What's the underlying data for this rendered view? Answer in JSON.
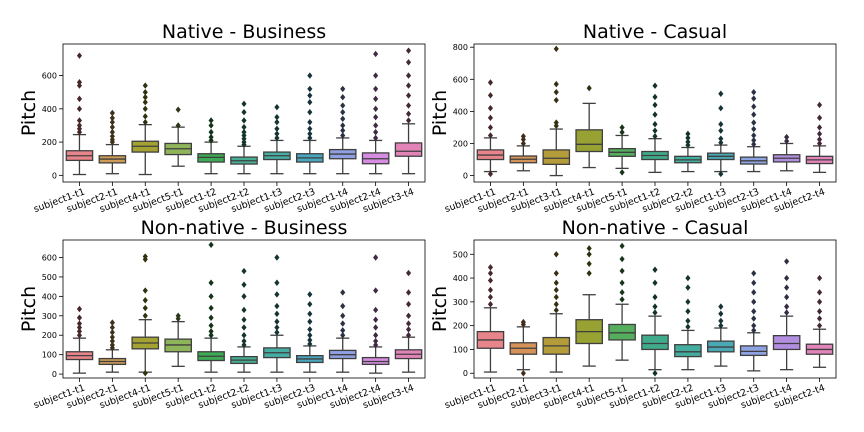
{
  "chart_data": [
    {
      "type": "box",
      "title": "Native - Business",
      "xlabel": "",
      "ylabel": "Pitch",
      "ylim": [
        -40,
        790
      ],
      "yticks": [
        0,
        200,
        400,
        600
      ],
      "grid": false,
      "categories": [
        "subject1-t1",
        "subject2-t1",
        "subject4-t1",
        "subject5-t1",
        "subject1-t2",
        "subject2-t2",
        "subject1-t3",
        "subject2-t3",
        "subject1-t4",
        "subject2-t4",
        "subject3-t4"
      ],
      "colors": [
        "#e8858a",
        "#cf9b55",
        "#a4a232",
        "#8eb55a",
        "#3daa55",
        "#47ae93",
        "#46ada3",
        "#4aa7c0",
        "#8f9fe0",
        "#d68ce0",
        "#e384b9"
      ],
      "boxes": [
        {
          "whisker_low": 5,
          "q1": 90,
          "median": 118,
          "q3": 148,
          "whisker_high": 245,
          "outliers": [
            260,
            280,
            300,
            330,
            400,
            460,
            540,
            560,
            720
          ]
        },
        {
          "whisker_low": 10,
          "q1": 75,
          "median": 98,
          "q3": 118,
          "whisker_high": 185,
          "outliers": [
            200,
            215,
            235,
            260,
            290,
            320,
            345,
            375
          ]
        },
        {
          "whisker_low": 5,
          "q1": 140,
          "median": 175,
          "q3": 205,
          "whisker_high": 305,
          "outliers": [
            320,
            355,
            400,
            440,
            470,
            500,
            540
          ]
        },
        {
          "whisker_low": 55,
          "q1": 125,
          "median": 160,
          "q3": 192,
          "whisker_high": 290,
          "outliers": [
            300,
            395
          ]
        },
        {
          "whisker_low": 10,
          "q1": 80,
          "median": 108,
          "q3": 130,
          "whisker_high": 200,
          "outliers": [
            210,
            230,
            260,
            300,
            330
          ]
        },
        {
          "whisker_low": 10,
          "q1": 68,
          "median": 88,
          "q3": 110,
          "whisker_high": 175,
          "outliers": [
            185,
            200,
            220,
            240,
            260,
            290,
            330,
            380,
            430
          ]
        },
        {
          "whisker_low": 10,
          "q1": 95,
          "median": 118,
          "q3": 140,
          "whisker_high": 210,
          "outliers": [
            225,
            250,
            280,
            320,
            350,
            410
          ]
        },
        {
          "whisker_low": 10,
          "q1": 80,
          "median": 105,
          "q3": 130,
          "whisker_high": 210,
          "outliers": [
            225,
            250,
            280,
            320,
            380,
            440,
            480,
            520,
            600
          ]
        },
        {
          "whisker_low": 10,
          "q1": 100,
          "median": 128,
          "q3": 155,
          "whisker_high": 225,
          "outliers": [
            240,
            270,
            300,
            340,
            380,
            420,
            470,
            520
          ]
        },
        {
          "whisker_low": 10,
          "q1": 70,
          "median": 100,
          "q3": 135,
          "whisker_high": 210,
          "outliers": [
            225,
            260,
            300,
            350,
            400,
            460,
            520,
            600,
            730
          ]
        },
        {
          "whisker_low": 10,
          "q1": 115,
          "median": 145,
          "q3": 195,
          "whisker_high": 310,
          "outliers": [
            330,
            370,
            420,
            480,
            540,
            600,
            680,
            750
          ]
        }
      ]
    },
    {
      "type": "box",
      "title": "Native - Casual",
      "xlabel": "",
      "ylabel": "Pitch",
      "ylim": [
        -40,
        820
      ],
      "yticks": [
        0,
        200,
        400,
        600,
        800
      ],
      "grid": false,
      "categories": [
        "subject1-t1",
        "subject2-t1",
        "subject3-t1",
        "subject4-t1",
        "subject5-t1",
        "subject1-t2",
        "subject2-t2",
        "subject1-t3",
        "subject2-t3",
        "subject1-t4",
        "subject2-t4"
      ],
      "colors": [
        "#e8858a",
        "#d5935a",
        "#b49c3a",
        "#98a232",
        "#55ae5e",
        "#40ab8b",
        "#45ad9f",
        "#4aa9b5",
        "#8ea3e2",
        "#b28ee0",
        "#e385bb"
      ],
      "boxes": [
        {
          "whisker_low": 25,
          "q1": 100,
          "median": 128,
          "q3": 160,
          "whisker_high": 235,
          "outliers": [
            10,
            250,
            300,
            360,
            420,
            500,
            580
          ]
        },
        {
          "whisker_low": 30,
          "q1": 80,
          "median": 102,
          "q3": 122,
          "whisker_high": 185,
          "outliers": [
            200,
            225,
            245
          ]
        },
        {
          "whisker_low": 0,
          "q1": 70,
          "median": 108,
          "q3": 160,
          "whisker_high": 290,
          "outliers": [
            310,
            330,
            470,
            520,
            570,
            790
          ]
        },
        {
          "whisker_low": 50,
          "q1": 150,
          "median": 195,
          "q3": 285,
          "whisker_high": 450,
          "outliers": [
            545
          ]
        },
        {
          "whisker_low": 45,
          "q1": 120,
          "median": 145,
          "q3": 168,
          "whisker_high": 250,
          "outliers": [
            20,
            270,
            300
          ]
        },
        {
          "whisker_low": 20,
          "q1": 100,
          "median": 125,
          "q3": 150,
          "whisker_high": 230,
          "outliers": [
            245,
            280,
            320,
            380,
            440,
            490,
            560
          ]
        },
        {
          "whisker_low": 25,
          "q1": 80,
          "median": 98,
          "q3": 120,
          "whisker_high": 175,
          "outliers": [
            190,
            210,
            235,
            260
          ]
        },
        {
          "whisker_low": 25,
          "q1": 100,
          "median": 120,
          "q3": 140,
          "whisker_high": 190,
          "outliers": [
            10,
            205,
            230,
            280,
            320,
            420,
            510
          ]
        },
        {
          "whisker_low": 25,
          "q1": 72,
          "median": 92,
          "q3": 115,
          "whisker_high": 180,
          "outliers": [
            195,
            220,
            250,
            290,
            330,
            380,
            430,
            480,
            520
          ]
        },
        {
          "whisker_low": 30,
          "q1": 85,
          "median": 108,
          "q3": 130,
          "whisker_high": 200,
          "outliers": [
            215,
            240
          ]
        },
        {
          "whisker_low": 20,
          "q1": 75,
          "median": 98,
          "q3": 120,
          "whisker_high": 185,
          "outliers": [
            200,
            225,
            260,
            300,
            360,
            440
          ]
        }
      ]
    },
    {
      "type": "box",
      "title": "Non-native - Business",
      "xlabel": "",
      "ylabel": "Pitch",
      "ylim": [
        -20,
        690
      ],
      "yticks": [
        0,
        100,
        200,
        300,
        400,
        500,
        600
      ],
      "grid": false,
      "categories": [
        "subject1-t1",
        "subject2-t1",
        "subject4-t1",
        "subject5-t1",
        "subject1-t2",
        "subject2-t2",
        "subject1-t3",
        "subject2-t3",
        "subject1-t4",
        "subject2-t4",
        "subject3-t4"
      ],
      "colors": [
        "#e8858a",
        "#cf9b55",
        "#a4a232",
        "#8eb55a",
        "#3daa55",
        "#47ae93",
        "#46ada3",
        "#4aa7c0",
        "#8f9fe0",
        "#d68ce0",
        "#e384b9"
      ],
      "boxes": [
        {
          "whisker_low": 5,
          "q1": 75,
          "median": 95,
          "q3": 115,
          "whisker_high": 185,
          "outliers": [
            200,
            220,
            240,
            260,
            290,
            335
          ]
        },
        {
          "whisker_low": 10,
          "q1": 50,
          "median": 65,
          "q3": 80,
          "whisker_high": 125,
          "outliers": [
            135,
            150,
            170,
            190,
            215,
            240,
            265
          ]
        },
        {
          "whisker_low": 10,
          "q1": 130,
          "median": 160,
          "q3": 190,
          "whisker_high": 280,
          "outliers": [
            5,
            300,
            340,
            380,
            430,
            590,
            605
          ]
        },
        {
          "whisker_low": 40,
          "q1": 115,
          "median": 150,
          "q3": 180,
          "whisker_high": 270,
          "outliers": [
            285,
            300
          ]
        },
        {
          "whisker_low": 10,
          "q1": 70,
          "median": 92,
          "q3": 115,
          "whisker_high": 185,
          "outliers": [
            200,
            220,
            250,
            290,
            340,
            400,
            470,
            665
          ]
        },
        {
          "whisker_low": 10,
          "q1": 55,
          "median": 72,
          "q3": 90,
          "whisker_high": 140,
          "outliers": [
            150,
            170,
            200,
            240,
            280,
            330,
            400,
            460,
            530
          ]
        },
        {
          "whisker_low": 10,
          "q1": 85,
          "median": 110,
          "q3": 135,
          "whisker_high": 200,
          "outliers": [
            215,
            240,
            270,
            310,
            350,
            410,
            470,
            600
          ]
        },
        {
          "whisker_low": 10,
          "q1": 60,
          "median": 78,
          "q3": 95,
          "whisker_high": 145,
          "outliers": [
            155,
            175,
            200,
            230,
            270,
            310,
            360,
            410
          ]
        },
        {
          "whisker_low": 10,
          "q1": 80,
          "median": 100,
          "q3": 122,
          "whisker_high": 185,
          "outliers": [
            200,
            225,
            260,
            300,
            350,
            420
          ]
        },
        {
          "whisker_low": 5,
          "q1": 50,
          "median": 65,
          "q3": 85,
          "whisker_high": 140,
          "outliers": [
            150,
            170,
            200,
            240,
            280,
            330,
            430,
            600
          ]
        },
        {
          "whisker_low": 10,
          "q1": 80,
          "median": 102,
          "q3": 125,
          "whisker_high": 190,
          "outliers": [
            200,
            230,
            260,
            300,
            360,
            420,
            520
          ]
        }
      ]
    },
    {
      "type": "box",
      "title": "Non-native - Casual",
      "xlabel": "",
      "ylabel": "Pitch",
      "ylim": [
        -20,
        560
      ],
      "yticks": [
        0,
        100,
        200,
        300,
        400,
        500
      ],
      "grid": false,
      "categories": [
        "subject1-t1",
        "subject2-t1",
        "subject3-t1",
        "subject4-t1",
        "subject5-t1",
        "subject1-t2",
        "subject2-t2",
        "subject1-t3",
        "subject2-t3",
        "subject1-t4",
        "subject2-t4"
      ],
      "colors": [
        "#e8858a",
        "#d5935a",
        "#b49c3a",
        "#98a232",
        "#55ae5e",
        "#40ab8b",
        "#45ad9f",
        "#4aa9b5",
        "#8ea3e2",
        "#b28ee0",
        "#e385bb"
      ],
      "boxes": [
        {
          "whisker_low": 5,
          "q1": 105,
          "median": 140,
          "q3": 175,
          "whisker_high": 275,
          "outliers": [
            290,
            320,
            350,
            390,
            420,
            445
          ]
        },
        {
          "whisker_low": 15,
          "q1": 80,
          "median": 105,
          "q3": 128,
          "whisker_high": 195,
          "outliers": [
            0,
            205,
            215
          ]
        },
        {
          "whisker_low": 5,
          "q1": 80,
          "median": 115,
          "q3": 150,
          "whisker_high": 250,
          "outliers": [
            265,
            290,
            320,
            350,
            380,
            420,
            500
          ]
        },
        {
          "whisker_low": 30,
          "q1": 125,
          "median": 175,
          "q3": 225,
          "whisker_high": 330,
          "outliers": [
            420,
            460,
            500,
            525
          ]
        },
        {
          "whisker_low": 55,
          "q1": 140,
          "median": 170,
          "q3": 205,
          "whisker_high": 290,
          "outliers": [
            310,
            340,
            380,
            430,
            480,
            535
          ]
        },
        {
          "whisker_low": 15,
          "q1": 100,
          "median": 125,
          "q3": 160,
          "whisker_high": 240,
          "outliers": [
            0,
            255,
            280,
            320,
            380,
            435
          ]
        },
        {
          "whisker_low": 15,
          "q1": 70,
          "median": 90,
          "q3": 120,
          "whisker_high": 180,
          "outliers": [
            195,
            220,
            260,
            300,
            360,
            400
          ]
        },
        {
          "whisker_low": 30,
          "q1": 90,
          "median": 110,
          "q3": 135,
          "whisker_high": 190,
          "outliers": [
            200,
            220,
            250,
            280
          ]
        },
        {
          "whisker_low": 10,
          "q1": 75,
          "median": 92,
          "q3": 115,
          "whisker_high": 170,
          "outliers": [
            180,
            200,
            230,
            260,
            300,
            340,
            380,
            420
          ]
        },
        {
          "whisker_low": 15,
          "q1": 100,
          "median": 125,
          "q3": 158,
          "whisker_high": 240,
          "outliers": [
            255,
            280,
            320,
            360,
            400,
            470
          ]
        },
        {
          "whisker_low": 25,
          "q1": 80,
          "median": 100,
          "q3": 122,
          "whisker_high": 185,
          "outliers": [
            200,
            230,
            260,
            300,
            340,
            400
          ]
        }
      ]
    }
  ]
}
